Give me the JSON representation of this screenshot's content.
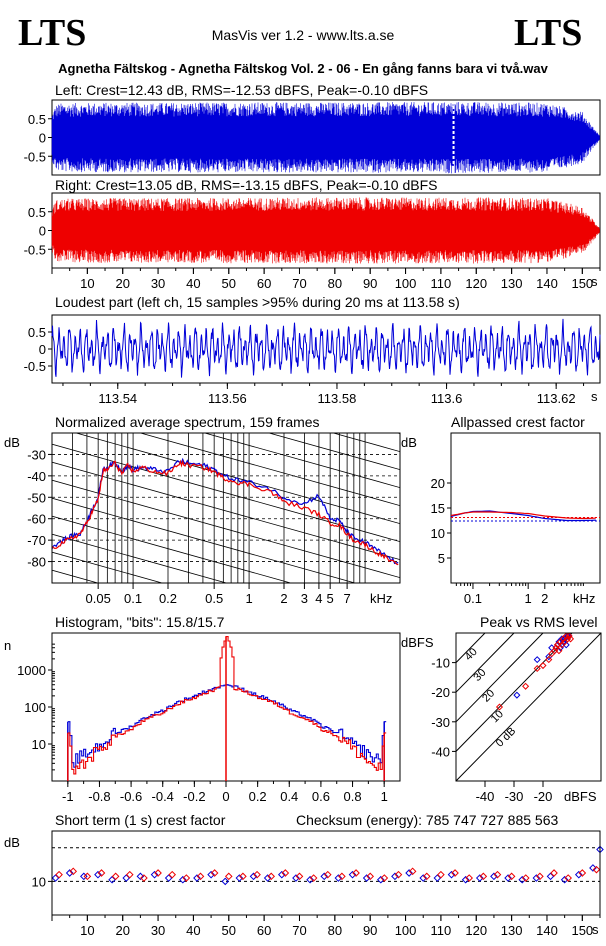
{
  "header": {
    "logo_left": "LTS",
    "logo_right": "LTS",
    "app_name": "MasVis ver 1.2 - www.lts.a.se",
    "file_title": "Agnetha Fältskog - Agnetha Fältskog Vol. 2 - 06 - En gång fanns bara vi två.wav"
  },
  "panels": {
    "left": {
      "title": "Left: Crest=12.43 dB, RMS=-12.53 dBFS, Peak=-0.10 dBFS"
    },
    "right": {
      "title": "Right: Crest=13.05 dB, RMS=-13.15 dBFS, Peak=-0.10 dBFS"
    },
    "loudest": {
      "title": "Loudest part (left  ch, 15 samples >95% during 20 ms at 113.58 s)"
    },
    "spectrum": {
      "title": "Normalized average spectrum, 159 frames",
      "ylabel": "dB",
      "xunit": "kHz"
    },
    "allpass": {
      "title": "Allpassed crest factor",
      "ylabel": "dB",
      "xunit": "kHz"
    },
    "histogram": {
      "title": "Histogram, \"bits\": 15.8/15.7",
      "ylabel": "n"
    },
    "peakrms": {
      "title": "Peak vs RMS level",
      "ylabel": "dBFS",
      "xunit": "dBFS"
    },
    "shortterm": {
      "title": "Short term (1 s) crest factor",
      "checksum": "Checksum (energy):   785 747 727 885 563",
      "ylabel": "dB"
    }
  },
  "colors": {
    "left": "#0000d8",
    "right": "#ee0000",
    "axis": "#000000",
    "grid": "#000000"
  },
  "chart_data": [
    {
      "id": "left",
      "type": "area",
      "title": "Left: Crest=12.43 dB, RMS=-12.53 dBFS, Peak=-0.10 dBFS",
      "ylim": [
        -1,
        1
      ],
      "yticks": [
        0.5,
        0,
        -0.5
      ],
      "ytick_labels": [
        "0.5",
        "0",
        "-0.5"
      ],
      "duration": 155.0,
      "marker_x": 113.58,
      "envelope": {
        "x": [
          0,
          1,
          2,
          5,
          15,
          25,
          35,
          50,
          70,
          90,
          110,
          113,
          125,
          140,
          150,
          153,
          155
        ],
        "amp": [
          0.65,
          0.88,
          0.93,
          0.94,
          0.95,
          0.95,
          0.95,
          0.96,
          0.96,
          0.96,
          0.97,
          0.98,
          0.96,
          0.95,
          0.7,
          0.3,
          0.05
        ]
      }
    },
    {
      "id": "right",
      "type": "area",
      "title": "Right: Crest=13.05 dB, RMS=-13.15 dBFS, Peak=-0.10 dBFS",
      "ylim": [
        -1,
        1
      ],
      "yticks": [
        0.5,
        0,
        -0.5
      ],
      "ytick_labels": [
        "0.5",
        "0",
        "-0.5"
      ],
      "duration": 155.0,
      "xticks": [
        10,
        20,
        30,
        40,
        50,
        60,
        70,
        80,
        90,
        100,
        110,
        120,
        130,
        140,
        150
      ],
      "xunit": "s",
      "envelope": {
        "x": [
          0,
          1,
          2,
          5,
          15,
          25,
          35,
          50,
          70,
          90,
          110,
          125,
          140,
          150,
          153,
          155
        ],
        "amp": [
          0.6,
          0.82,
          0.86,
          0.87,
          0.88,
          0.88,
          0.88,
          0.89,
          0.9,
          0.9,
          0.9,
          0.9,
          0.88,
          0.65,
          0.3,
          0.05
        ]
      }
    },
    {
      "id": "loudest",
      "type": "line",
      "title": "Loudest part (left  ch, 15 samples >95% during 20 ms at 113.58 s)",
      "xlim": [
        113.528,
        113.628
      ],
      "ylim": [
        -1,
        1
      ],
      "yticks": [
        0.5,
        0,
        -0.5
      ],
      "ytick_labels": [
        "0.5",
        "0",
        "-0.5"
      ],
      "xticks": [
        113.54,
        113.56,
        113.58,
        113.6,
        113.62
      ],
      "xtick_labels": [
        "113.54",
        "113.56",
        "113.58",
        "113.6",
        "113.62"
      ],
      "xunit": "s",
      "series": [
        {
          "color": "#0000d8",
          "components": [
            {
              "freq": 1000,
              "amp": 0.42,
              "phase": 0.3
            },
            {
              "freq": 610,
              "amp": 0.22,
              "phase": 1.4
            },
            {
              "freq": 2350,
              "amp": 0.16,
              "phase": 2.2
            },
            {
              "freq": 4100,
              "amp": 0.07,
              "phase": 0.9
            }
          ]
        }
      ]
    },
    {
      "id": "spectrum",
      "type": "line",
      "title": "Normalized average spectrum, 159 frames",
      "xscale": "log",
      "xlim": [
        0.02,
        20
      ],
      "ylim": [
        -90,
        -20
      ],
      "yticks": [
        -30,
        -40,
        -50,
        -60,
        -70,
        -80
      ],
      "ytick_labels": [
        "-30",
        "-40",
        "-50",
        "-60",
        "-70",
        "-80"
      ],
      "xticks": [
        0.05,
        0.1,
        0.2,
        0.5,
        1,
        2,
        3,
        4,
        5,
        7
      ],
      "xtick_labels": [
        "0.05",
        "0.1",
        "0.2",
        "0.5",
        "1",
        "2",
        "3",
        "4",
        "5",
        "7"
      ],
      "xunit": "kHz",
      "series": [
        {
          "color": "#0000d8",
          "x": [
            0.02,
            0.025,
            0.03,
            0.035,
            0.04,
            0.045,
            0.05,
            0.055,
            0.06,
            0.07,
            0.08,
            0.09,
            0.1,
            0.12,
            0.15,
            0.2,
            0.25,
            0.3,
            0.4,
            0.5,
            0.6,
            0.8,
            1,
            1.5,
            2,
            3,
            4,
            5,
            6,
            7,
            8,
            10,
            12,
            15,
            20
          ],
          "y": [
            -73,
            -70,
            -68,
            -67,
            -61,
            -55,
            -50,
            -37,
            -36,
            -34,
            -38,
            -35,
            -37,
            -36,
            -37,
            -38,
            -33,
            -34,
            -35,
            -37,
            -40,
            -42,
            -43,
            -46,
            -50,
            -53,
            -49,
            -60,
            -61,
            -66,
            -69,
            -71,
            -74,
            -77,
            -82
          ]
        },
        {
          "color": "#ee0000",
          "x": [
            0.02,
            0.025,
            0.03,
            0.035,
            0.04,
            0.045,
            0.05,
            0.055,
            0.06,
            0.07,
            0.08,
            0.09,
            0.1,
            0.12,
            0.15,
            0.2,
            0.25,
            0.3,
            0.4,
            0.5,
            0.6,
            0.8,
            1,
            1.5,
            2,
            3,
            4,
            5,
            6,
            7,
            8,
            10,
            12,
            15,
            20
          ],
          "y": [
            -74,
            -71,
            -69,
            -67,
            -62,
            -56,
            -51,
            -38,
            -37,
            -34,
            -39,
            -35,
            -38,
            -36,
            -38,
            -39,
            -34,
            -35,
            -36,
            -38,
            -41,
            -43,
            -44,
            -47,
            -52,
            -55,
            -58,
            -62,
            -63,
            -67,
            -70,
            -72,
            -75,
            -78,
            -83
          ]
        }
      ]
    },
    {
      "id": "allpass",
      "type": "line",
      "title": "Allpassed crest factor",
      "xscale": "log",
      "xlim": [
        0.04,
        20
      ],
      "ylim": [
        0,
        30
      ],
      "yticks": [
        20,
        15,
        10,
        5
      ],
      "ytick_labels": [
        "20",
        "15",
        "10",
        "5"
      ],
      "xticks": [
        0.1,
        1,
        2
      ],
      "xtick_labels": [
        "0.1",
        "1",
        "2"
      ],
      "xunit": "kHz",
      "reference_lines": [
        12.4,
        13.1
      ],
      "series": [
        {
          "color": "#0000d8",
          "x": [
            0.04,
            0.07,
            0.1,
            0.2,
            0.5,
            1,
            2,
            5,
            10,
            20
          ],
          "y": [
            13.3,
            14.0,
            14.3,
            14.4,
            13.9,
            13.5,
            12.9,
            12.5,
            12.5,
            12.6
          ]
        },
        {
          "color": "#ee0000",
          "x": [
            0.04,
            0.07,
            0.1,
            0.2,
            0.5,
            1,
            2,
            5,
            10,
            20
          ],
          "y": [
            13.5,
            14.0,
            14.2,
            14.2,
            14.1,
            13.9,
            13.4,
            13.0,
            12.9,
            13.0
          ]
        }
      ]
    },
    {
      "id": "histogram",
      "type": "line",
      "title": "Histogram, \"bits\": 15.8/15.7",
      "xlim": [
        -1.1,
        1.1
      ],
      "yscale": "log",
      "ylim": [
        1,
        10000
      ],
      "yticks": [
        1000,
        100,
        10
      ],
      "ytick_labels": [
        "1000",
        "100",
        "10"
      ],
      "xticks": [
        -1,
        -0.8,
        -0.6,
        -0.4,
        -0.2,
        0,
        0.2,
        0.4,
        0.6,
        0.8,
        1
      ],
      "xtick_labels": [
        "-1",
        "-0.8",
        "-0.6",
        "-0.4",
        "-0.2",
        "0",
        "0.2",
        "0.4",
        "0.6",
        "0.8",
        "1"
      ],
      "series": [
        {
          "color": "#0000d8",
          "x": [
            -1,
            -0.98,
            -0.9,
            -0.8,
            -0.6,
            -0.4,
            -0.2,
            -0.05,
            0,
            0.05,
            0.2,
            0.4,
            0.6,
            0.8,
            0.9,
            0.98,
            1
          ],
          "y": [
            40,
            3,
            5,
            9,
            30,
            80,
            200,
            350,
            400,
            350,
            200,
            80,
            30,
            9,
            5,
            3,
            40
          ]
        },
        {
          "color": "#ee0000",
          "x": [
            -1,
            -0.98,
            -0.9,
            -0.8,
            -0.6,
            -0.4,
            -0.2,
            -0.05,
            0,
            0.05,
            0.2,
            0.4,
            0.6,
            0.8,
            0.9,
            0.98,
            1
          ],
          "y": [
            20,
            2,
            3,
            7,
            25,
            70,
            180,
            320,
            8000,
            320,
            180,
            70,
            25,
            7,
            3,
            2,
            20
          ]
        }
      ]
    },
    {
      "id": "peakrms",
      "type": "scatter",
      "title": "Peak vs RMS level",
      "xlim": [
        -50,
        0
      ],
      "ylim": [
        -50,
        0
      ],
      "xticks": [
        -40,
        -30,
        -20
      ],
      "xtick_labels": [
        "-40",
        "-30",
        "-20"
      ],
      "yticks": [
        -10,
        -20,
        -30,
        -40
      ],
      "ytick_labels": [
        "-10",
        "-20",
        "-30",
        "-40"
      ],
      "diagonal_labels": [
        "40",
        "30",
        "20",
        "10",
        "0 dB"
      ],
      "series": [
        {
          "color": "#0000d8",
          "x": [
            -29,
            -22,
            -18,
            -17,
            -16,
            -15,
            -14.5,
            -14,
            -13.5,
            -13,
            -12.5,
            -12,
            -11.5,
            -11
          ],
          "y": [
            -21,
            -9,
            -8,
            -5,
            -6,
            -4,
            -3,
            -5,
            -2,
            -3,
            -2,
            -4,
            -1,
            -1
          ]
        },
        {
          "color": "#ee0000",
          "x": [
            -35,
            -26,
            -22,
            -20,
            -18,
            -17,
            -16,
            -15.5,
            -15,
            -14.5,
            -14,
            -13.5,
            -13,
            -12.5,
            -12,
            -11.5,
            -11,
            -10.5
          ],
          "y": [
            -25,
            -18,
            -12,
            -11,
            -9,
            -7,
            -6,
            -5,
            -4,
            -6,
            -3,
            -4,
            -2,
            -3,
            -1,
            -2,
            -1,
            -2
          ]
        }
      ]
    },
    {
      "id": "shortterm",
      "type": "scatter",
      "title": "Short term (1 s) crest factor",
      "xlim": [
        0,
        155
      ],
      "ylim": [
        0,
        25
      ],
      "yticks": [
        10
      ],
      "ytick_labels": [
        "10"
      ],
      "reference_lines": [
        10,
        20
      ],
      "xticks": [
        10,
        20,
        30,
        40,
        50,
        60,
        70,
        80,
        90,
        100,
        110,
        120,
        130,
        140,
        150
      ],
      "xunit": "s",
      "series": [
        {
          "color": "#0000d8",
          "x": [
            1,
            5,
            9,
            13,
            17,
            21,
            25,
            29,
            33,
            37,
            41,
            45,
            49,
            53,
            57,
            61,
            65,
            69,
            73,
            77,
            81,
            85,
            89,
            93,
            97,
            101,
            105,
            109,
            113,
            117,
            121,
            125,
            129,
            133,
            137,
            141,
            145,
            149,
            153,
            155
          ],
          "y": [
            11.0,
            12.5,
            11.5,
            12.0,
            10.5,
            11.0,
            11.5,
            12.0,
            11.0,
            10.5,
            11.0,
            12.0,
            10.0,
            11.0,
            11.5,
            11.0,
            12.0,
            11.0,
            10.5,
            11.5,
            11.0,
            12.0,
            11.0,
            10.5,
            11.5,
            12.5,
            11.0,
            11.0,
            12.0,
            10.5,
            11.0,
            11.5,
            11.0,
            10.5,
            11.0,
            11.5,
            10.5,
            12.0,
            14.0,
            19.5
          ]
        },
        {
          "color": "#ee0000",
          "x": [
            2,
            6,
            10,
            14,
            18,
            22,
            26,
            30,
            34,
            38,
            42,
            46,
            50,
            54,
            58,
            62,
            66,
            70,
            74,
            78,
            82,
            86,
            90,
            94,
            98,
            102,
            106,
            110,
            114,
            118,
            122,
            126,
            130,
            134,
            138,
            142,
            146,
            150,
            154
          ],
          "y": [
            12.0,
            13.0,
            11.5,
            12.5,
            11.5,
            12.0,
            11.0,
            12.5,
            12.0,
            11.0,
            11.5,
            12.5,
            11.5,
            11.5,
            12.0,
            11.5,
            12.5,
            11.5,
            11.0,
            12.0,
            11.5,
            12.5,
            11.5,
            11.0,
            12.0,
            13.0,
            11.5,
            12.0,
            12.5,
            11.0,
            11.5,
            12.0,
            11.5,
            11.0,
            11.5,
            12.5,
            11.0,
            12.5,
            13.5
          ]
        }
      ]
    }
  ]
}
